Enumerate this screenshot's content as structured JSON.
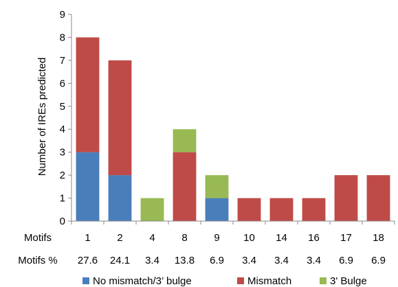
{
  "chart_data": {
    "type": "bar",
    "stacked": true,
    "title": "",
    "xlabel": "",
    "ylabel": "Number of IREs predicted",
    "ylim": [
      0,
      9
    ],
    "yticks": [
      0,
      1,
      2,
      3,
      4,
      5,
      6,
      7,
      8,
      9
    ],
    "grid": false,
    "legend_position": "bottom",
    "row_labels": [
      "Motifs",
      "Motifs %"
    ],
    "categories": [
      "1",
      "2",
      "4",
      "8",
      "9",
      "10",
      "14",
      "16",
      "17",
      "18"
    ],
    "motif_percent": [
      "27.6",
      "24.1",
      "3.4",
      "13.8",
      "6.9",
      "3.4",
      "3.4",
      "3.4",
      "6.9",
      "6.9"
    ],
    "series": [
      {
        "name": "No mismatch/3’ bulge",
        "color": "#4a7ebb",
        "values": [
          3,
          2,
          0,
          0,
          1,
          0,
          0,
          0,
          0,
          0
        ]
      },
      {
        "name": "Mismatch",
        "color": "#be4b48",
        "values": [
          5,
          5,
          0,
          3,
          0,
          1,
          1,
          1,
          2,
          2
        ]
      },
      {
        "name": "3' Bulge",
        "color": "#98b954",
        "values": [
          0,
          0,
          1,
          1,
          1,
          0,
          0,
          0,
          0,
          0
        ]
      }
    ]
  }
}
